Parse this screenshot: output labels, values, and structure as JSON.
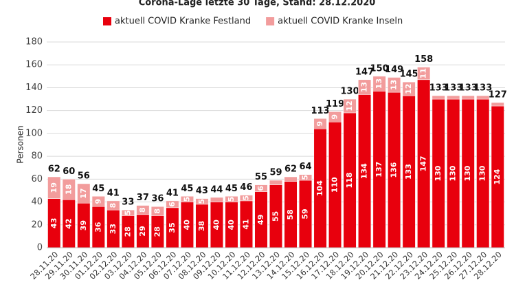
{
  "chart_data": {
    "type": "bar",
    "stacked": true,
    "title": "Corona-Lage letzte 30 Tage, Stand: 28.12.2020",
    "y_label": "Personen",
    "categories": [
      "28.11.20",
      "29.11.20",
      "30.11.20",
      "01.12.20",
      "02.12.20",
      "03.12.20",
      "04.12.20",
      "05.12.20",
      "06.12.20",
      "07.12.20",
      "08.12.20",
      "09.12.20",
      "10.12.20",
      "11.12.20",
      "12.12.20",
      "13.12.20",
      "14.12.20",
      "15.12.20",
      "16.12.20",
      "17.12.20",
      "18.12.20",
      "19.12.20",
      "20.12.20",
      "21.12.20",
      "22.12.20",
      "23.12.20",
      "24.12.20",
      "25.12.20",
      "26.12.20",
      "27.12.20",
      "28.12.20"
    ],
    "series": [
      {
        "name": "aktuell COVID Kranke Festland",
        "color": "#e8000d",
        "values": [
          43,
          42,
          39,
          36,
          33,
          28,
          29,
          28,
          35,
          40,
          38,
          40,
          40,
          41,
          49,
          55,
          58,
          59,
          104,
          110,
          118,
          134,
          137,
          136,
          133,
          147,
          130,
          130,
          130,
          130,
          124
        ]
      },
      {
        "name": "aktuell COVID Kranke Inseln",
        "color": "#f29c9c",
        "values": [
          19,
          18,
          17,
          9,
          8,
          5,
          8,
          8,
          6,
          5,
          5,
          4,
          5,
          5,
          6,
          4,
          4,
          5,
          9,
          9,
          12,
          13,
          13,
          13,
          12,
          11,
          3,
          3,
          3,
          3,
          3
        ]
      }
    ],
    "totals": [
      62,
      60,
      56,
      45,
      41,
      33,
      37,
      36,
      41,
      45,
      43,
      44,
      45,
      46,
      55,
      59,
      62,
      64,
      113,
      119,
      130,
      147,
      150,
      149,
      145,
      158,
      133,
      133,
      133,
      133,
      127
    ],
    "ylim": [
      0,
      180
    ],
    "yticks": [
      0,
      20,
      40,
      60,
      80,
      100,
      120,
      140,
      160,
      180
    ],
    "grid": true
  }
}
